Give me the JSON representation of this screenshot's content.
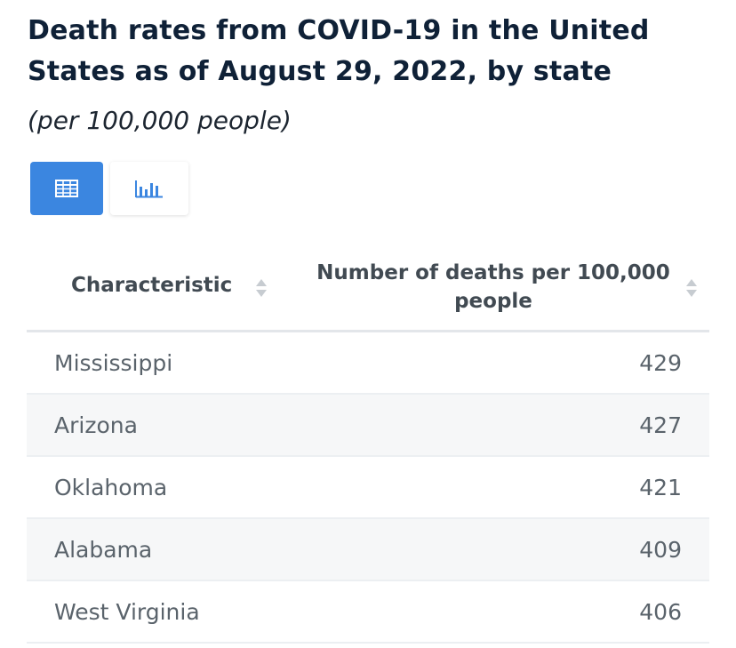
{
  "header": {
    "title": "Death rates from COVID-19 in the United States as of August 29, 2022, by state",
    "subtitle": "(per 100,000 people)"
  },
  "view_toggle": {
    "table_icon": "table-grid-icon",
    "chart_icon": "bar-chart-icon",
    "active": "table",
    "active_color": "#3b86e0"
  },
  "table": {
    "columns": [
      "Characteristic",
      "Number of deaths per 100,000 people"
    ],
    "rows": [
      {
        "state": "Mississippi",
        "value": "429"
      },
      {
        "state": "Arizona",
        "value": "427"
      },
      {
        "state": "Oklahoma",
        "value": "421"
      },
      {
        "state": "Alabama",
        "value": "409"
      },
      {
        "state": "West Virginia",
        "value": "406"
      }
    ]
  }
}
